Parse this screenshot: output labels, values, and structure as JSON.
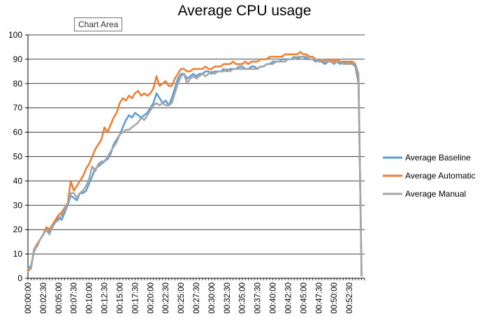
{
  "chart_data": {
    "type": "line",
    "title": "Average CPU usage",
    "tooltip": "Chart Area",
    "xlabel": "",
    "ylabel": "",
    "ylim": [
      0,
      100
    ],
    "yticks": [
      "0",
      "10",
      "20",
      "30",
      "40",
      "50",
      "60",
      "70",
      "80",
      "90",
      "100"
    ],
    "xtick_labels": [
      "00:00:00",
      "00:02:30",
      "00:05:00",
      "00:07:30",
      "00:10:00",
      "00:12:30",
      "00:15:00",
      "00:17:30",
      "00:20:00",
      "00:22:30",
      "00:25:00",
      "00:27:30",
      "00:30:00",
      "00:32:30",
      "00:35:00",
      "00:37:30",
      "00:40:00",
      "00:42:30",
      "00:45:00",
      "00:47:30",
      "00:50:00",
      "00:52:30"
    ],
    "x_unit_minutes": [
      0,
      2.5,
      5,
      7.5,
      10,
      12.5,
      15,
      17.5,
      20,
      22.5,
      25,
      27.5,
      30,
      32.5,
      35,
      37.5,
      40,
      42.5,
      45,
      47.5,
      50,
      52.5
    ],
    "xlim_minutes": [
      0,
      55.0
    ],
    "grid": true,
    "legend_position": "right",
    "series": [
      {
        "name": "Average Baseline",
        "color": "#5b9bd5",
        "x": [
          0,
          0.5,
          1,
          1.5,
          2,
          2.5,
          3,
          3.5,
          4,
          4.5,
          5,
          5.5,
          6,
          6.5,
          7,
          7.5,
          8,
          8.5,
          9,
          9.5,
          10,
          10.5,
          11,
          11.5,
          12,
          12.5,
          13,
          13.5,
          14,
          14.5,
          15,
          15.5,
          16,
          16.5,
          17,
          17.5,
          18,
          18.5,
          19,
          19.5,
          20,
          20.5,
          21,
          21.5,
          22,
          22.5,
          23,
          23.5,
          24,
          24.5,
          25,
          25.5,
          26,
          26.5,
          27,
          27.5,
          28,
          28.5,
          29,
          29.5,
          30,
          30.5,
          31,
          31.5,
          32,
          32.5,
          33,
          33.5,
          34,
          34.5,
          35,
          35.5,
          36,
          36.5,
          37,
          37.5,
          38,
          38.5,
          39,
          39.5,
          40,
          40.5,
          41,
          41.5,
          42,
          42.5,
          43,
          43.5,
          44,
          44.5,
          45,
          45.5,
          46,
          46.5,
          47,
          47.5,
          48,
          48.5,
          49,
          49.5,
          50,
          50.5,
          51,
          51.5,
          52,
          52.5,
          53,
          53.5,
          54,
          54.5
        ],
        "values": [
          4,
          5,
          11,
          14,
          16,
          18,
          20,
          19,
          21,
          23,
          25,
          24,
          27,
          30,
          34,
          33,
          32,
          35,
          35,
          36,
          39,
          42,
          45,
          46,
          47,
          48,
          49,
          51,
          55,
          57,
          59,
          62,
          65,
          67,
          66,
          68,
          67,
          66,
          67,
          68,
          70,
          72,
          76,
          74,
          72,
          73,
          71,
          74,
          78,
          82,
          84,
          84,
          82,
          83,
          84,
          83,
          84,
          84,
          85,
          85,
          84,
          85,
          85,
          85,
          86,
          85,
          86,
          86,
          86,
          87,
          87,
          86,
          86,
          87,
          87,
          86,
          87,
          87,
          88,
          88,
          89,
          89,
          89,
          90,
          90,
          90,
          90,
          91,
          90,
          91,
          91,
          90,
          90,
          90,
          89,
          90,
          89,
          88,
          89,
          89,
          88,
          89,
          88,
          89,
          88,
          89,
          88,
          87,
          80,
          1
        ]
      },
      {
        "name": "Average Automatic",
        "color": "#ed7d31",
        "x": [
          0,
          0.5,
          1,
          1.5,
          2,
          2.5,
          3,
          3.5,
          4,
          4.5,
          5,
          5.5,
          6,
          6.5,
          7,
          7.5,
          8,
          8.5,
          9,
          9.5,
          10,
          10.5,
          11,
          11.5,
          12,
          12.5,
          13,
          13.5,
          14,
          14.5,
          15,
          15.5,
          16,
          16.5,
          17,
          17.5,
          18,
          18.5,
          19,
          19.5,
          20,
          20.5,
          21,
          21.5,
          22,
          22.5,
          23,
          23.5,
          24,
          24.5,
          25,
          25.5,
          26,
          26.5,
          27,
          27.5,
          28,
          28.5,
          29,
          29.5,
          30,
          30.5,
          31,
          31.5,
          32,
          32.5,
          33,
          33.5,
          34,
          34.5,
          35,
          35.5,
          36,
          36.5,
          37,
          37.5,
          38,
          38.5,
          39,
          39.5,
          40,
          40.5,
          41,
          41.5,
          42,
          42.5,
          43,
          43.5,
          44,
          44.5,
          45,
          45.5,
          46,
          46.5,
          47,
          47.5,
          48,
          48.5,
          49,
          49.5,
          50,
          50.5,
          51,
          51.5,
          52,
          52.5,
          53,
          53.5,
          54,
          54.5
        ],
        "values": [
          3,
          4,
          12,
          14,
          16,
          18,
          21,
          20,
          22,
          24,
          26,
          27,
          29,
          31,
          40,
          36,
          38,
          40,
          42,
          45,
          47,
          50,
          53,
          55,
          57,
          62,
          60,
          63,
          66,
          68,
          72,
          74,
          73,
          75,
          74,
          76,
          77,
          75,
          76,
          75,
          76,
          78,
          83,
          79,
          80,
          81,
          79,
          79,
          82,
          84,
          86,
          86,
          85,
          85,
          86,
          86,
          86,
          86,
          87,
          86,
          86,
          87,
          87,
          87,
          88,
          88,
          88,
          89,
          88,
          88,
          88,
          89,
          88,
          89,
          89,
          89,
          90,
          90,
          90,
          91,
          91,
          91,
          91,
          91,
          92,
          92,
          92,
          92,
          92,
          93,
          92,
          92,
          91,
          91,
          90,
          89,
          89,
          90,
          89,
          90,
          89,
          90,
          89,
          89,
          89,
          89,
          89,
          88,
          82,
          1
        ]
      },
      {
        "name": "Average Manual",
        "color": "#a5a5a5",
        "x": [
          0,
          0.5,
          1,
          1.5,
          2,
          2.5,
          3,
          3.5,
          4,
          4.5,
          5,
          5.5,
          6,
          6.5,
          7,
          7.5,
          8,
          8.5,
          9,
          9.5,
          10,
          10.5,
          11,
          11.5,
          12,
          12.5,
          13,
          13.5,
          14,
          14.5,
          15,
          15.5,
          16,
          16.5,
          17,
          17.5,
          18,
          18.5,
          19,
          19.5,
          20,
          20.5,
          21,
          21.5,
          22,
          22.5,
          23,
          23.5,
          24,
          24.5,
          25,
          25.5,
          26,
          26.5,
          27,
          27.5,
          28,
          28.5,
          29,
          29.5,
          30,
          30.5,
          31,
          31.5,
          32,
          32.5,
          33,
          33.5,
          34,
          34.5,
          35,
          35.5,
          36,
          36.5,
          37,
          37.5,
          38,
          38.5,
          39,
          39.5,
          40,
          40.5,
          41,
          41.5,
          42,
          42.5,
          43,
          43.5,
          44,
          44.5,
          45,
          45.5,
          46,
          46.5,
          47,
          47.5,
          48,
          48.5,
          49,
          49.5,
          50,
          50.5,
          51,
          51.5,
          52,
          52.5,
          53,
          53.5,
          54,
          54.5
        ],
        "values": [
          4,
          4,
          12,
          13,
          16,
          18,
          20,
          18,
          21,
          23,
          24,
          26,
          28,
          31,
          35,
          35,
          33,
          35,
          36,
          38,
          41,
          46,
          44,
          47,
          48,
          48,
          50,
          52,
          54,
          56,
          59,
          60,
          61,
          61,
          62,
          63,
          64,
          66,
          65,
          67,
          69,
          71,
          72,
          71,
          72,
          71,
          71,
          72,
          76,
          80,
          83,
          84,
          80,
          82,
          83,
          82,
          83,
          84,
          83,
          84,
          85,
          84,
          85,
          85,
          85,
          86,
          85,
          86,
          86,
          86,
          86,
          86,
          86,
          86,
          86,
          86,
          87,
          87,
          88,
          88,
          88,
          89,
          89,
          89,
          89,
          90,
          90,
          90,
          91,
          91,
          91,
          91,
          90,
          90,
          90,
          89,
          90,
          89,
          89,
          89,
          88,
          89,
          89,
          88,
          88,
          88,
          88,
          88,
          84,
          1
        ]
      }
    ]
  }
}
